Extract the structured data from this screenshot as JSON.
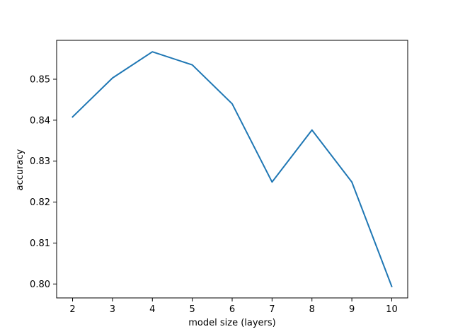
{
  "chart_data": {
    "type": "line",
    "title": "",
    "xlabel": "model size (layers)",
    "ylabel": "accuracy",
    "x": [
      2,
      3,
      4,
      5,
      6,
      7,
      8,
      9,
      10
    ],
    "series": [
      {
        "values": [
          0.8408,
          0.8503,
          0.8567,
          0.8535,
          0.844,
          0.8249,
          0.8376,
          0.8249,
          0.7994
        ],
        "color": "#1f77b4"
      }
    ],
    "xticks": [
      2,
      3,
      4,
      5,
      6,
      7,
      8,
      9,
      10
    ],
    "yticks": [
      0.8,
      0.81,
      0.82,
      0.83,
      0.84,
      0.85
    ],
    "ytick_labels": [
      "0.80",
      "0.81",
      "0.82",
      "0.83",
      "0.84",
      "0.85"
    ],
    "xlim": [
      1.6,
      10.4
    ],
    "ylim": [
      0.7966,
      0.8595
    ],
    "grid": false,
    "legend": false
  }
}
